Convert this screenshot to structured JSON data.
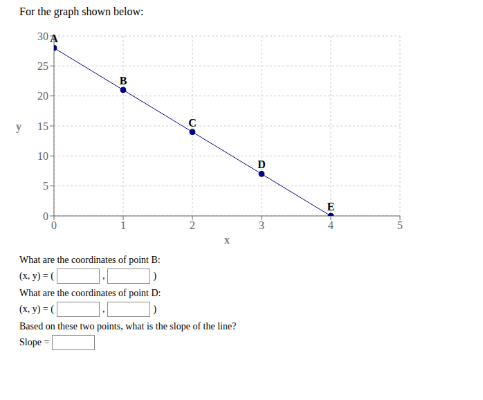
{
  "chart_data": {
    "type": "line",
    "title": "For the graph shown below:",
    "x": [
      0,
      1,
      2,
      3,
      4
    ],
    "values": [
      28,
      21,
      14,
      7,
      0
    ],
    "point_labels": [
      "A",
      "B",
      "C",
      "D",
      "E"
    ],
    "color": "#00008B",
    "marker": "o",
    "xlabel": "x",
    "ylabel": "y",
    "xlim": [
      0,
      5
    ],
    "ylim": [
      0,
      30
    ],
    "xticks": [
      0,
      1,
      2,
      3,
      4,
      5
    ],
    "yticks": [
      0,
      5,
      10,
      15,
      20,
      25,
      30
    ],
    "grid": true,
    "questions": [
      {
        "text": "What are the coordinates of point B:",
        "answer_prefix": "(x, y) = (",
        "answer_separator": ",",
        "answer_suffix": ")"
      },
      {
        "text": "What are the coordinates of point D:",
        "answer_prefix": "(x, y) = (",
        "answer_separator": ",",
        "answer_suffix": ")"
      },
      {
        "text": "Based on these two points, what is the slope of the line?",
        "answer_prefix": "Slope ="
      }
    ]
  }
}
